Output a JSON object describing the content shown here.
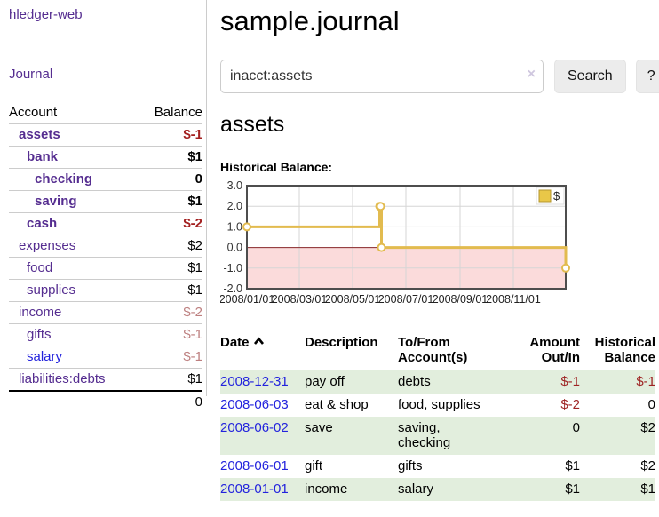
{
  "app": {
    "brand": "hledger-web"
  },
  "sidebar": {
    "nav_journal": "Journal",
    "accounts_table": {
      "headers": {
        "account": "Account",
        "balance": "Balance"
      },
      "rows": [
        {
          "name": "assets",
          "balance": "$-1",
          "depth": 1,
          "bold": true,
          "neg": "strong",
          "blue": false
        },
        {
          "name": "bank",
          "balance": "$1",
          "depth": 2,
          "bold": true,
          "neg": null,
          "blue": false
        },
        {
          "name": "checking",
          "balance": "0",
          "depth": 3,
          "bold": true,
          "neg": null,
          "blue": false
        },
        {
          "name": "saving",
          "balance": "$1",
          "depth": 3,
          "bold": true,
          "neg": null,
          "blue": false
        },
        {
          "name": "cash",
          "balance": "$-2",
          "depth": 2,
          "bold": true,
          "neg": "strong",
          "blue": false
        },
        {
          "name": "expenses",
          "balance": "$2",
          "depth": 1,
          "bold": false,
          "neg": null,
          "blue": false
        },
        {
          "name": "food",
          "balance": "$1",
          "depth": 2,
          "bold": false,
          "neg": null,
          "blue": false
        },
        {
          "name": "supplies",
          "balance": "$1",
          "depth": 2,
          "bold": false,
          "neg": null,
          "blue": false
        },
        {
          "name": "income",
          "balance": "$-2",
          "depth": 1,
          "bold": false,
          "neg": "muted",
          "blue": false
        },
        {
          "name": "gifts",
          "balance": "$-1",
          "depth": 2,
          "bold": false,
          "neg": "muted",
          "blue": false
        },
        {
          "name": "salary",
          "balance": "$-1",
          "depth": 2,
          "bold": false,
          "neg": "muted",
          "blue": true
        },
        {
          "name": "liabilities:debts",
          "balance": "$1",
          "depth": 1,
          "bold": false,
          "neg": null,
          "blue": false
        }
      ],
      "total": "0"
    }
  },
  "header": {
    "title": "sample.journal"
  },
  "search": {
    "value": "inacct:assets",
    "clear_icon": "×",
    "button_label": "Search",
    "help_label": "?"
  },
  "account_page": {
    "title": "assets",
    "chart_label": "Historical Balance:"
  },
  "chart_data": {
    "type": "line",
    "title": "Historical Balance",
    "steps": true,
    "series": [
      {
        "name": "$",
        "color": "#e2bb4f",
        "points": [
          [
            "2008-01-01",
            1
          ],
          [
            "2008-06-01",
            2
          ],
          [
            "2008-06-02",
            2
          ],
          [
            "2008-06-03",
            0
          ],
          [
            "2008-12-31",
            -1
          ]
        ]
      }
    ],
    "x_range": [
      "2008-01-01",
      "2008-12-31"
    ],
    "x_ticks": [
      {
        "label": "2008/01/01",
        "date": "2008-01-01"
      },
      {
        "label": "2008/03/01",
        "date": "2008-03-01"
      },
      {
        "label": "2008/05/01",
        "date": "2008-05-01"
      },
      {
        "label": "2008/07/01",
        "date": "2008-07-01"
      },
      {
        "label": "2008/09/01",
        "date": "2008-09-01"
      },
      {
        "label": "2008/11/01",
        "date": "2008-11-01"
      }
    ],
    "y_ticks": [
      3,
      2,
      1,
      0,
      -1,
      -2
    ],
    "ylim": [
      -2,
      3
    ],
    "grid": true,
    "legend": {
      "label": "$",
      "position": "top-right"
    },
    "negative_region_color": "#fbdbdb",
    "zero_line_color": "#8b2a2b"
  },
  "register_table": {
    "headers": {
      "date": "Date",
      "description": "Description",
      "accounts": "To/From Account(s)",
      "amount": "Amount Out/In",
      "balance": "Historical Balance"
    },
    "rows": [
      {
        "date": "2008-12-31",
        "description": "pay off",
        "accounts": "debts",
        "amount": "$-1",
        "balance": "$-1",
        "amount_neg": true,
        "balance_neg": true
      },
      {
        "date": "2008-06-03",
        "description": "eat & shop",
        "accounts": "food, supplies",
        "amount": "$-2",
        "balance": "0",
        "amount_neg": true,
        "balance_neg": false
      },
      {
        "date": "2008-06-02",
        "description": "save",
        "accounts": "saving, checking",
        "amount": "0",
        "balance": "$2",
        "amount_neg": false,
        "balance_neg": false
      },
      {
        "date": "2008-06-01",
        "description": "gift",
        "accounts": "gifts",
        "amount": "$1",
        "balance": "$2",
        "amount_neg": false,
        "balance_neg": false
      },
      {
        "date": "2008-01-01",
        "description": "income",
        "accounts": "salary",
        "amount": "$1",
        "balance": "$1",
        "amount_neg": false,
        "balance_neg": false
      }
    ]
  }
}
